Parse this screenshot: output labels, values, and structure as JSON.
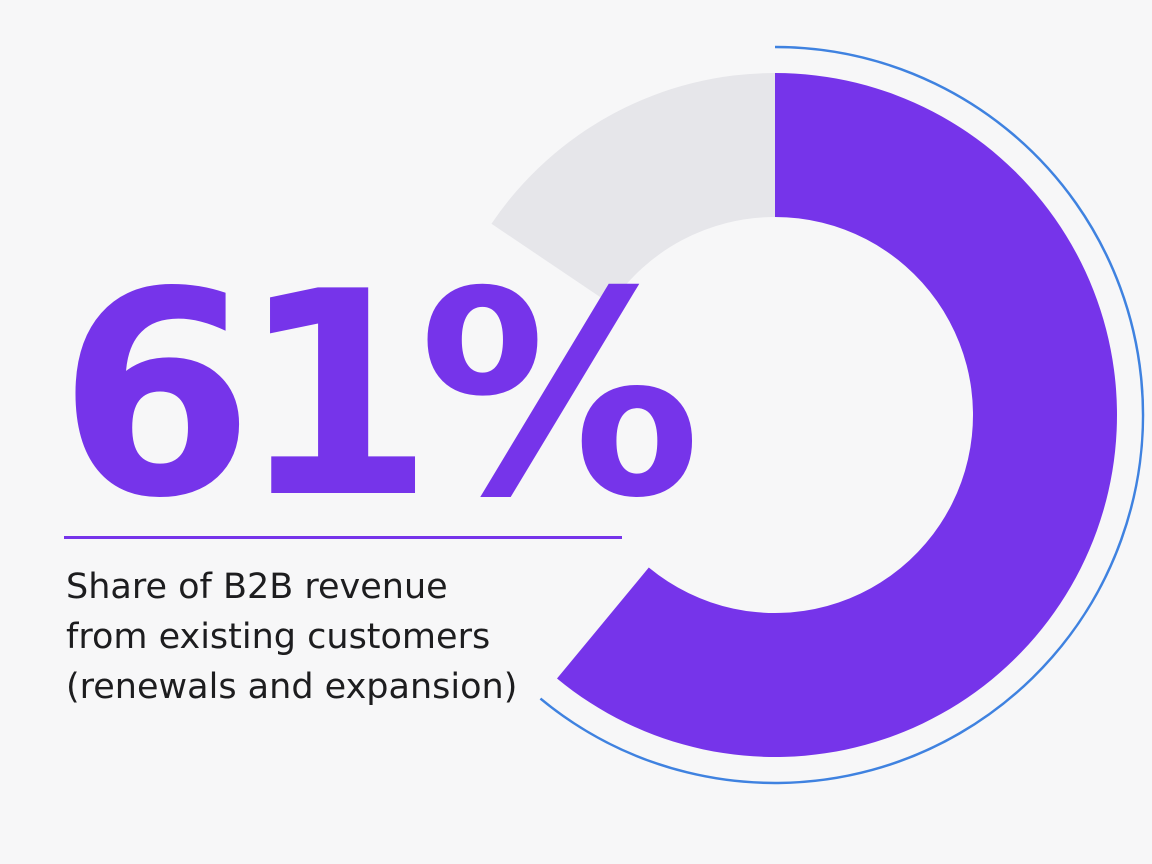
{
  "headline": {
    "value_text": "61%"
  },
  "caption": {
    "lines": [
      "Share of B2B revenue",
      "from existing customers",
      "(renewals and expansion)"
    ]
  },
  "colors": {
    "accent": "#7634ea",
    "remainder": "#e6e6ea",
    "outline": "#3f82e0",
    "background": "#f7f7f8",
    "text": "#1d1d1f"
  },
  "chart_data": {
    "type": "pie",
    "title": "",
    "categories": [
      "existing customers",
      ""
    ],
    "values": [
      61,
      39
    ],
    "unit": "%"
  }
}
